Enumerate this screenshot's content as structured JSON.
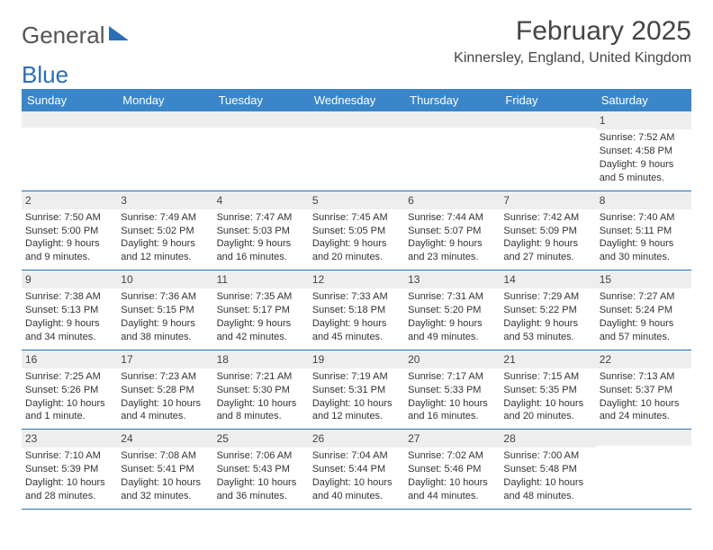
{
  "logo": {
    "part1": "General",
    "part2": "Blue"
  },
  "title": "February 2025",
  "location": "Kinnersley, England, United Kingdom",
  "header_bg": "#3b86c8",
  "border_color": "#2a6fb5",
  "band_bg": "#eeeeee",
  "dows": [
    "Sunday",
    "Monday",
    "Tuesday",
    "Wednesday",
    "Thursday",
    "Friday",
    "Saturday"
  ],
  "weeks": [
    [
      {
        "num": "",
        "lines": []
      },
      {
        "num": "",
        "lines": []
      },
      {
        "num": "",
        "lines": []
      },
      {
        "num": "",
        "lines": []
      },
      {
        "num": "",
        "lines": []
      },
      {
        "num": "",
        "lines": []
      },
      {
        "num": "1",
        "lines": [
          "Sunrise: 7:52 AM",
          "Sunset: 4:58 PM",
          "Daylight: 9 hours",
          "and 5 minutes."
        ]
      }
    ],
    [
      {
        "num": "2",
        "lines": [
          "Sunrise: 7:50 AM",
          "Sunset: 5:00 PM",
          "Daylight: 9 hours",
          "and 9 minutes."
        ]
      },
      {
        "num": "3",
        "lines": [
          "Sunrise: 7:49 AM",
          "Sunset: 5:02 PM",
          "Daylight: 9 hours",
          "and 12 minutes."
        ]
      },
      {
        "num": "4",
        "lines": [
          "Sunrise: 7:47 AM",
          "Sunset: 5:03 PM",
          "Daylight: 9 hours",
          "and 16 minutes."
        ]
      },
      {
        "num": "5",
        "lines": [
          "Sunrise: 7:45 AM",
          "Sunset: 5:05 PM",
          "Daylight: 9 hours",
          "and 20 minutes."
        ]
      },
      {
        "num": "6",
        "lines": [
          "Sunrise: 7:44 AM",
          "Sunset: 5:07 PM",
          "Daylight: 9 hours",
          "and 23 minutes."
        ]
      },
      {
        "num": "7",
        "lines": [
          "Sunrise: 7:42 AM",
          "Sunset: 5:09 PM",
          "Daylight: 9 hours",
          "and 27 minutes."
        ]
      },
      {
        "num": "8",
        "lines": [
          "Sunrise: 7:40 AM",
          "Sunset: 5:11 PM",
          "Daylight: 9 hours",
          "and 30 minutes."
        ]
      }
    ],
    [
      {
        "num": "9",
        "lines": [
          "Sunrise: 7:38 AM",
          "Sunset: 5:13 PM",
          "Daylight: 9 hours",
          "and 34 minutes."
        ]
      },
      {
        "num": "10",
        "lines": [
          "Sunrise: 7:36 AM",
          "Sunset: 5:15 PM",
          "Daylight: 9 hours",
          "and 38 minutes."
        ]
      },
      {
        "num": "11",
        "lines": [
          "Sunrise: 7:35 AM",
          "Sunset: 5:17 PM",
          "Daylight: 9 hours",
          "and 42 minutes."
        ]
      },
      {
        "num": "12",
        "lines": [
          "Sunrise: 7:33 AM",
          "Sunset: 5:18 PM",
          "Daylight: 9 hours",
          "and 45 minutes."
        ]
      },
      {
        "num": "13",
        "lines": [
          "Sunrise: 7:31 AM",
          "Sunset: 5:20 PM",
          "Daylight: 9 hours",
          "and 49 minutes."
        ]
      },
      {
        "num": "14",
        "lines": [
          "Sunrise: 7:29 AM",
          "Sunset: 5:22 PM",
          "Daylight: 9 hours",
          "and 53 minutes."
        ]
      },
      {
        "num": "15",
        "lines": [
          "Sunrise: 7:27 AM",
          "Sunset: 5:24 PM",
          "Daylight: 9 hours",
          "and 57 minutes."
        ]
      }
    ],
    [
      {
        "num": "16",
        "lines": [
          "Sunrise: 7:25 AM",
          "Sunset: 5:26 PM",
          "Daylight: 10 hours",
          "and 1 minute."
        ]
      },
      {
        "num": "17",
        "lines": [
          "Sunrise: 7:23 AM",
          "Sunset: 5:28 PM",
          "Daylight: 10 hours",
          "and 4 minutes."
        ]
      },
      {
        "num": "18",
        "lines": [
          "Sunrise: 7:21 AM",
          "Sunset: 5:30 PM",
          "Daylight: 10 hours",
          "and 8 minutes."
        ]
      },
      {
        "num": "19",
        "lines": [
          "Sunrise: 7:19 AM",
          "Sunset: 5:31 PM",
          "Daylight: 10 hours",
          "and 12 minutes."
        ]
      },
      {
        "num": "20",
        "lines": [
          "Sunrise: 7:17 AM",
          "Sunset: 5:33 PM",
          "Daylight: 10 hours",
          "and 16 minutes."
        ]
      },
      {
        "num": "21",
        "lines": [
          "Sunrise: 7:15 AM",
          "Sunset: 5:35 PM",
          "Daylight: 10 hours",
          "and 20 minutes."
        ]
      },
      {
        "num": "22",
        "lines": [
          "Sunrise: 7:13 AM",
          "Sunset: 5:37 PM",
          "Daylight: 10 hours",
          "and 24 minutes."
        ]
      }
    ],
    [
      {
        "num": "23",
        "lines": [
          "Sunrise: 7:10 AM",
          "Sunset: 5:39 PM",
          "Daylight: 10 hours",
          "and 28 minutes."
        ]
      },
      {
        "num": "24",
        "lines": [
          "Sunrise: 7:08 AM",
          "Sunset: 5:41 PM",
          "Daylight: 10 hours",
          "and 32 minutes."
        ]
      },
      {
        "num": "25",
        "lines": [
          "Sunrise: 7:06 AM",
          "Sunset: 5:43 PM",
          "Daylight: 10 hours",
          "and 36 minutes."
        ]
      },
      {
        "num": "26",
        "lines": [
          "Sunrise: 7:04 AM",
          "Sunset: 5:44 PM",
          "Daylight: 10 hours",
          "and 40 minutes."
        ]
      },
      {
        "num": "27",
        "lines": [
          "Sunrise: 7:02 AM",
          "Sunset: 5:46 PM",
          "Daylight: 10 hours",
          "and 44 minutes."
        ]
      },
      {
        "num": "28",
        "lines": [
          "Sunrise: 7:00 AM",
          "Sunset: 5:48 PM",
          "Daylight: 10 hours",
          "and 48 minutes."
        ]
      },
      {
        "num": "",
        "lines": []
      }
    ]
  ]
}
